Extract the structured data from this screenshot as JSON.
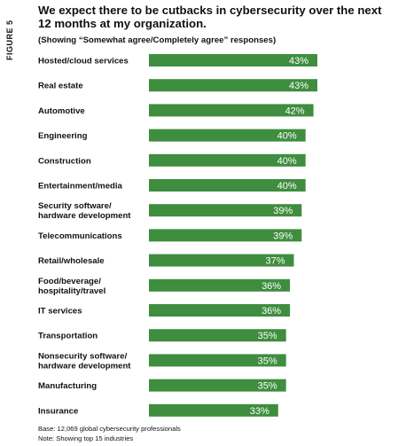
{
  "figure_label": "FIGURE 5",
  "title": "We expect there to be cutbacks in cybersecurity over the next 12 months at my organization.",
  "subtitle": "(Showing “Somewhat agree/Completely agree” responses)",
  "footnotes": {
    "base": "Base: 12,069 global cybersecurity professionals",
    "note": "Note: Showing top 15 industries"
  },
  "colors": {
    "bar": "#3f8d3f",
    "value_text": "#ffffff",
    "label_text": "#111111"
  },
  "chart_data": {
    "type": "bar",
    "orientation": "horizontal",
    "categories": [
      "Hosted/cloud services",
      "Real estate",
      "Automotive",
      "Engineering",
      "Construction",
      "Entertainment/media",
      "Security software/\nhardware development",
      "Telecommunications",
      "Retail/wholesale",
      "Food/beverage/\nhospitality/travel",
      "IT services",
      "Transportation",
      "Nonsecurity software/\nhardware development",
      "Manufacturing",
      "Insurance"
    ],
    "values": [
      43,
      43,
      42,
      40,
      40,
      40,
      39,
      39,
      37,
      36,
      36,
      35,
      35,
      35,
      33
    ],
    "value_labels": [
      "43%",
      "43%",
      "42%",
      "40%",
      "40%",
      "40%",
      "39%",
      "39%",
      "37%",
      "36%",
      "36%",
      "35%",
      "35%",
      "35%",
      "33%"
    ],
    "unit": "%",
    "grid": false,
    "legend": "none"
  }
}
